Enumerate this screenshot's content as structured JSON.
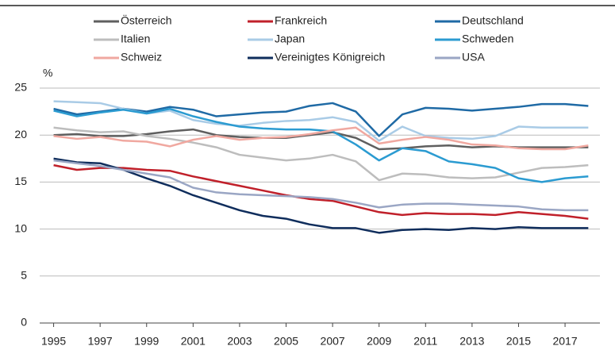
{
  "chart_data": {
    "type": "line",
    "y_label": "%",
    "x": [
      1995,
      1996,
      1997,
      1998,
      1999,
      2000,
      2001,
      2002,
      2003,
      2004,
      2005,
      2006,
      2007,
      2008,
      2009,
      2010,
      2011,
      2012,
      2013,
      2014,
      2015,
      2016,
      2017,
      2018
    ],
    "xlim": [
      1994.4,
      2018.5
    ],
    "xticks": [
      1995,
      1997,
      1999,
      2001,
      2003,
      2005,
      2007,
      2009,
      2011,
      2013,
      2015,
      2017
    ],
    "ylim": [
      0,
      25
    ],
    "yticks": [
      0,
      5,
      10,
      15,
      20,
      25
    ],
    "grid": true,
    "series": [
      {
        "name": "Österreich",
        "color": "#5f5f5f",
        "values": [
          20.0,
          20.1,
          19.9,
          19.9,
          20.1,
          20.4,
          20.6,
          20.0,
          19.8,
          19.7,
          19.7,
          20.0,
          20.3,
          19.7,
          18.5,
          18.6,
          18.8,
          18.9,
          18.7,
          18.8,
          18.7,
          18.7,
          18.7,
          18.7
        ]
      },
      {
        "name": "Frankreich",
        "color": "#c0202a",
        "values": [
          16.8,
          16.3,
          16.5,
          16.5,
          16.3,
          16.2,
          15.6,
          15.1,
          14.6,
          14.1,
          13.6,
          13.2,
          13.0,
          12.4,
          11.8,
          11.5,
          11.7,
          11.6,
          11.6,
          11.5,
          11.8,
          11.6,
          11.4,
          11.1
        ]
      },
      {
        "name": "Deutschland",
        "color": "#1f6aa5",
        "values": [
          22.8,
          22.2,
          22.5,
          22.8,
          22.5,
          23.0,
          22.7,
          22.0,
          22.2,
          22.4,
          22.5,
          23.1,
          23.4,
          22.5,
          19.9,
          22.2,
          22.9,
          22.8,
          22.6,
          22.8,
          23.0,
          23.3,
          23.3,
          23.1
        ]
      },
      {
        "name": "Italien",
        "color": "#bdbdbd",
        "values": [
          20.8,
          20.5,
          20.3,
          20.4,
          19.9,
          19.6,
          19.2,
          18.7,
          17.9,
          17.6,
          17.3,
          17.5,
          17.9,
          17.2,
          15.2,
          15.9,
          15.8,
          15.5,
          15.4,
          15.5,
          16.0,
          16.5,
          16.6,
          16.8
        ]
      },
      {
        "name": "Japan",
        "color": "#a9cbe6",
        "values": [
          23.6,
          23.5,
          23.4,
          22.8,
          22.3,
          22.6,
          21.6,
          21.2,
          21.0,
          21.3,
          21.5,
          21.6,
          21.9,
          21.4,
          19.4,
          20.9,
          19.9,
          19.7,
          19.6,
          19.9,
          20.9,
          20.8,
          20.8,
          20.8
        ]
      },
      {
        "name": "Schweden",
        "color": "#2b9bd1",
        "values": [
          22.6,
          22.0,
          22.4,
          22.7,
          22.3,
          22.8,
          22.0,
          21.4,
          20.9,
          20.7,
          20.6,
          20.6,
          20.4,
          19.0,
          17.3,
          18.6,
          18.3,
          17.2,
          16.9,
          16.5,
          15.4,
          15.0,
          15.4,
          15.6
        ]
      },
      {
        "name": "Schweiz",
        "color": "#f0a8a0",
        "values": [
          19.9,
          19.6,
          19.8,
          19.4,
          19.3,
          18.8,
          19.5,
          19.9,
          19.5,
          19.7,
          19.8,
          20.1,
          20.5,
          20.8,
          19.1,
          19.5,
          19.8,
          19.5,
          19.0,
          18.9,
          18.6,
          18.5,
          18.5,
          18.9
        ]
      },
      {
        "name": "Vereinigtes Königreich",
        "color": "#0f2d5c",
        "values": [
          17.5,
          17.1,
          17.0,
          16.3,
          15.4,
          14.6,
          13.6,
          12.8,
          12.0,
          11.4,
          11.1,
          10.5,
          10.1,
          10.1,
          9.6,
          9.9,
          10.0,
          9.9,
          10.1,
          10.0,
          10.2,
          10.1,
          10.1,
          10.1
        ]
      },
      {
        "name": "USA",
        "color": "#9aa6c4",
        "values": [
          17.3,
          17.0,
          16.7,
          16.3,
          15.9,
          15.5,
          14.4,
          13.9,
          13.7,
          13.6,
          13.5,
          13.4,
          13.2,
          12.8,
          12.3,
          12.6,
          12.7,
          12.7,
          12.6,
          12.5,
          12.4,
          12.1,
          12.0,
          12.0
        ]
      }
    ]
  }
}
